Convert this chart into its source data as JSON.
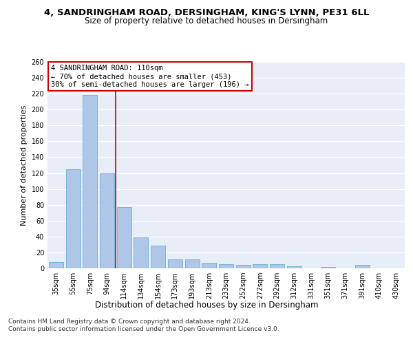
{
  "title1": "4, SANDRINGHAM ROAD, DERSINGHAM, KING'S LYNN, PE31 6LL",
  "title2": "Size of property relative to detached houses in Dersingham",
  "xlabel": "Distribution of detached houses by size in Dersingham",
  "ylabel": "Number of detached properties",
  "categories": [
    "35sqm",
    "55sqm",
    "75sqm",
    "94sqm",
    "114sqm",
    "134sqm",
    "154sqm",
    "173sqm",
    "193sqm",
    "213sqm",
    "233sqm",
    "252sqm",
    "272sqm",
    "292sqm",
    "312sqm",
    "331sqm",
    "351sqm",
    "371sqm",
    "391sqm",
    "410sqm",
    "430sqm"
  ],
  "values": [
    8,
    125,
    218,
    120,
    77,
    39,
    29,
    11,
    11,
    7,
    5,
    4,
    5,
    5,
    3,
    0,
    2,
    0,
    4,
    0,
    0
  ],
  "bar_color": "#aec6e8",
  "bar_edge_color": "#6aaed6",
  "vline_x_index": 3.5,
  "vline_color": "#cc0000",
  "annotation_text": "4 SANDRINGHAM ROAD: 110sqm\n← 70% of detached houses are smaller (453)\n30% of semi-detached houses are larger (196) →",
  "annotation_box_color": "#cc0000",
  "ylim": [
    0,
    260
  ],
  "yticks": [
    0,
    20,
    40,
    60,
    80,
    100,
    120,
    140,
    160,
    180,
    200,
    220,
    240,
    260
  ],
  "footer1": "Contains HM Land Registry data © Crown copyright and database right 2024.",
  "footer2": "Contains public sector information licensed under the Open Government Licence v3.0.",
  "bg_color": "#e8eef8",
  "title1_fontsize": 9.5,
  "title2_fontsize": 8.5,
  "xlabel_fontsize": 8.5,
  "ylabel_fontsize": 8,
  "tick_fontsize": 7,
  "annotation_fontsize": 7.5,
  "footer_fontsize": 6.5
}
